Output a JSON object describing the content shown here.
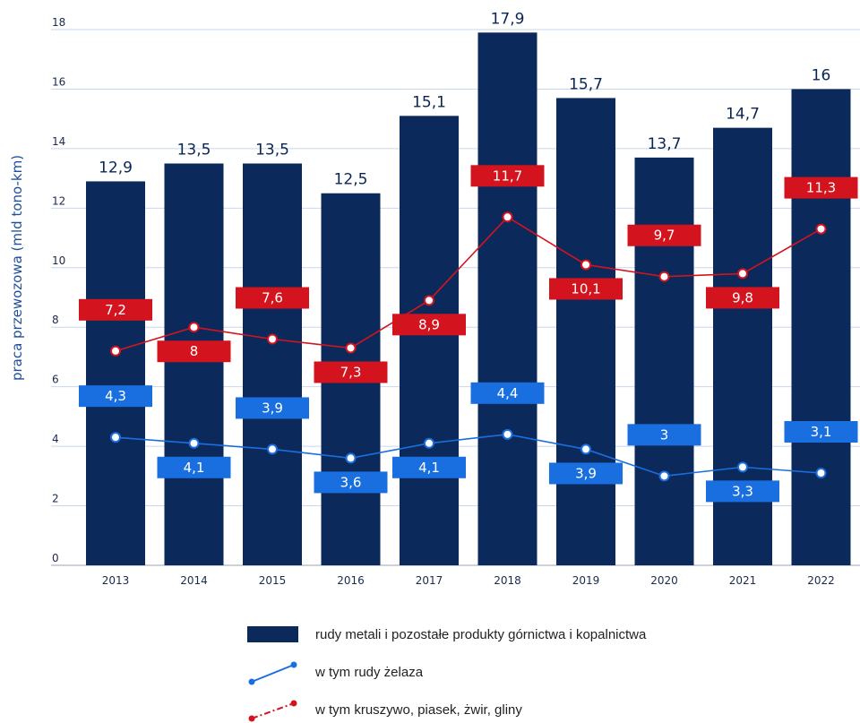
{
  "chart_data": {
    "type": "bar",
    "ylabel": "praca przewozowa (mld tono-km)",
    "xlabel": "",
    "categories": [
      "2013",
      "2014",
      "2015",
      "2016",
      "2017",
      "2018",
      "2019",
      "2020",
      "2021",
      "2022"
    ],
    "ylim": [
      0,
      18
    ],
    "yticks": [
      0,
      2,
      4,
      6,
      8,
      10,
      12,
      14,
      16,
      18
    ],
    "grid": true,
    "legend_position": "bottom",
    "series": [
      {
        "name": "rudy metali i pozostałe produkty górnictwa i kopalnictwa",
        "kind": "bar",
        "color": "#0b2a5b",
        "values": [
          12.9,
          13.5,
          13.5,
          12.5,
          15.1,
          17.9,
          15.7,
          13.7,
          14.7,
          16
        ],
        "labels": [
          "12,9",
          "13,5",
          "13,5",
          "12,5",
          "15,1",
          "17,9",
          "15,7",
          "13,7",
          "14,7",
          "16"
        ]
      },
      {
        "name": "w tym kruszywo, piasek, żwir, gliny",
        "kind": "line",
        "color": "#d3141e",
        "values": [
          7.2,
          8,
          7.6,
          7.3,
          8.9,
          11.7,
          10.1,
          9.7,
          9.8,
          11.3
        ],
        "labels": [
          "7,2",
          "8",
          "7,6",
          "7,3",
          "8,9",
          "11,7",
          "10,1",
          "9,7",
          "9,8",
          "11,3"
        ],
        "label_side": [
          "above",
          "below",
          "above",
          "below",
          "below",
          "above",
          "below",
          "above",
          "below",
          "above"
        ]
      },
      {
        "name": "w tym rudy żelaza",
        "kind": "line",
        "color": "#1a6fe0",
        "values": [
          4.3,
          4.1,
          3.9,
          3.6,
          4.1,
          4.4,
          3.9,
          3,
          3.3,
          3.1
        ],
        "labels": [
          "4,3",
          "4,1",
          "3,9",
          "3,6",
          "4,1",
          "4,4",
          "3,9",
          "3",
          "3,3",
          "3,1"
        ],
        "label_side": [
          "above",
          "below",
          "above",
          "below",
          "below",
          "above",
          "below",
          "above",
          "below",
          "above"
        ]
      }
    ],
    "legend": [
      {
        "name": "rudy metali i pozostałe produkty górnictwa i kopalnictwa"
      },
      {
        "name": "w tym rudy żelaza"
      },
      {
        "name": "w tym kruszywo, piasek, żwir, gliny"
      }
    ]
  }
}
